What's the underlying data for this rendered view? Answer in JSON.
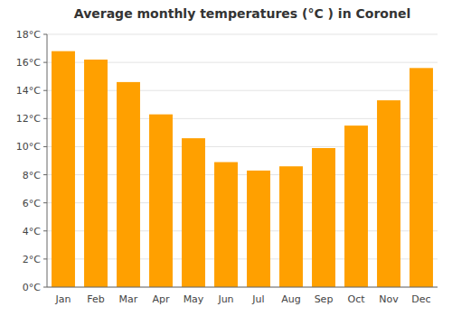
{
  "chart_data": {
    "type": "bar",
    "title": "Average monthly temperatures (°C ) in Coronel",
    "categories": [
      "Jan",
      "Feb",
      "Mar",
      "Apr",
      "May",
      "Jun",
      "Jul",
      "Aug",
      "Sep",
      "Oct",
      "Nov",
      "Dec"
    ],
    "values": [
      16.8,
      16.2,
      14.6,
      12.3,
      10.6,
      8.9,
      8.3,
      8.6,
      9.9,
      11.5,
      13.3,
      15.6
    ],
    "color": "#FFA000",
    "ylim": [
      0,
      18
    ],
    "yticks": [
      {
        "value": 0,
        "label": "0°C"
      },
      {
        "value": 2,
        "label": "2°C"
      },
      {
        "value": 4,
        "label": "4°C"
      },
      {
        "value": 6,
        "label": "6°C"
      },
      {
        "value": 8,
        "label": "8°C"
      },
      {
        "value": 10,
        "label": "10°C"
      },
      {
        "value": 12,
        "label": "12°C"
      },
      {
        "value": 14,
        "label": "14°C"
      },
      {
        "value": 16,
        "label": "16°C"
      },
      {
        "value": 18,
        "label": "18°C"
      }
    ],
    "grid": true
  }
}
